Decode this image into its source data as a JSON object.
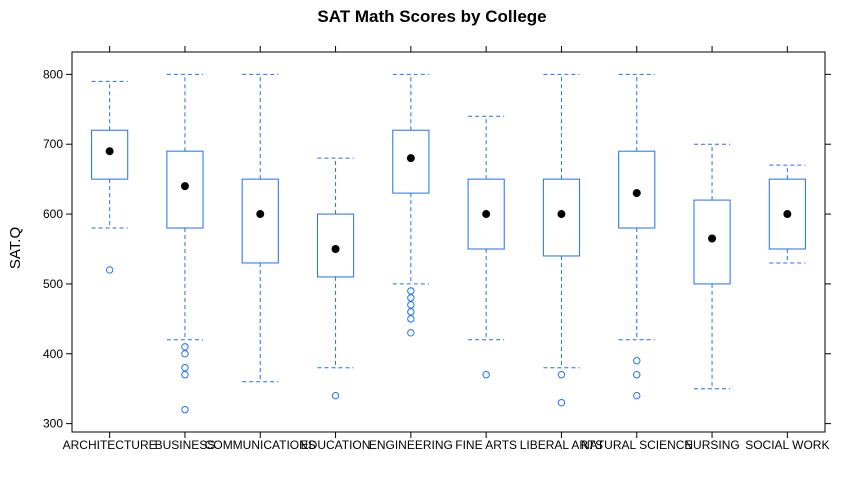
{
  "chart_data": {
    "type": "boxplot",
    "title": "SAT Math Scores by College",
    "xlabel": "",
    "ylabel": "SAT.Q",
    "ylim": [
      288,
      832
    ],
    "yticks": [
      300,
      400,
      500,
      600,
      700,
      800
    ],
    "grid": false,
    "colors": {
      "box": "#1f6fff",
      "median": "#000000"
    },
    "categories": [
      "ARCHITECTURE",
      "BUSINESS",
      "COMMUNICATIONS",
      "EDUCATION",
      "ENGINEERING",
      "FINE ARTS",
      "LIBERAL ARTS",
      "NATURAL SCIENCE",
      "NURSING",
      "SOCIAL WORK"
    ],
    "boxes": [
      {
        "category": "ARCHITECTURE",
        "lower_whisker": 580,
        "q1": 650,
        "median": 690,
        "q3": 720,
        "upper_whisker": 790,
        "outliers": [
          520
        ]
      },
      {
        "category": "BUSINESS",
        "lower_whisker": 420,
        "q1": 580,
        "median": 640,
        "q3": 690,
        "upper_whisker": 800,
        "outliers": [
          410,
          400,
          380,
          370,
          320
        ]
      },
      {
        "category": "COMMUNICATIONS",
        "lower_whisker": 360,
        "q1": 530,
        "median": 600,
        "q3": 650,
        "upper_whisker": 800,
        "outliers": []
      },
      {
        "category": "EDUCATION",
        "lower_whisker": 380,
        "q1": 510,
        "median": 550,
        "q3": 600,
        "upper_whisker": 680,
        "outliers": [
          340
        ]
      },
      {
        "category": "ENGINEERING",
        "lower_whisker": 500,
        "q1": 630,
        "median": 680,
        "q3": 720,
        "upper_whisker": 800,
        "outliers": [
          490,
          480,
          470,
          460,
          450,
          430
        ]
      },
      {
        "category": "FINE ARTS",
        "lower_whisker": 420,
        "q1": 550,
        "median": 600,
        "q3": 650,
        "upper_whisker": 740,
        "outliers": [
          370
        ]
      },
      {
        "category": "LIBERAL ARTS",
        "lower_whisker": 380,
        "q1": 540,
        "median": 600,
        "q3": 650,
        "upper_whisker": 800,
        "outliers": [
          370,
          330
        ]
      },
      {
        "category": "NATURAL SCIENCE",
        "lower_whisker": 420,
        "q1": 580,
        "median": 630,
        "q3": 690,
        "upper_whisker": 800,
        "outliers": [
          390,
          370,
          340
        ]
      },
      {
        "category": "NURSING",
        "lower_whisker": 350,
        "q1": 500,
        "median": 565,
        "q3": 620,
        "upper_whisker": 700,
        "outliers": []
      },
      {
        "category": "SOCIAL WORK",
        "lower_whisker": 530,
        "q1": 550,
        "median": 600,
        "q3": 650,
        "upper_whisker": 670,
        "outliers": []
      }
    ]
  }
}
